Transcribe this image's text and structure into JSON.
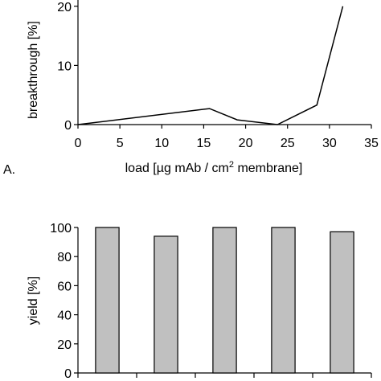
{
  "chart_data": [
    {
      "type": "line",
      "panel_label": "A.",
      "ylabel": "breakthrough [%]",
      "xlabel": "load [µg mAb / cm² membrane]",
      "xlabel_main": "load [µg mAb / cm",
      "xlabel_sup": "2",
      "xlabel_tail": " membrane]",
      "xlim": [
        0,
        35
      ],
      "ylim": [
        0,
        25
      ],
      "x_ticks": [
        "0",
        "5",
        "10",
        "15",
        "20",
        "25",
        "30",
        "35"
      ],
      "y_ticks": [
        "0",
        "10",
        "20"
      ],
      "grid": false,
      "series": [
        {
          "x": [
            0,
            15.7,
            19,
            23.8,
            28.5,
            31.6
          ],
          "y": [
            0,
            2.7,
            0.8,
            0,
            3.3,
            20
          ]
        }
      ]
    },
    {
      "type": "bar",
      "ylabel": "yield [%]",
      "ylim": [
        0,
        100
      ],
      "y_ticks": [
        "0",
        "20",
        "40",
        "60",
        "80",
        "100"
      ],
      "grid": false,
      "values": [
        100,
        94,
        100,
        100,
        97
      ]
    }
  ]
}
